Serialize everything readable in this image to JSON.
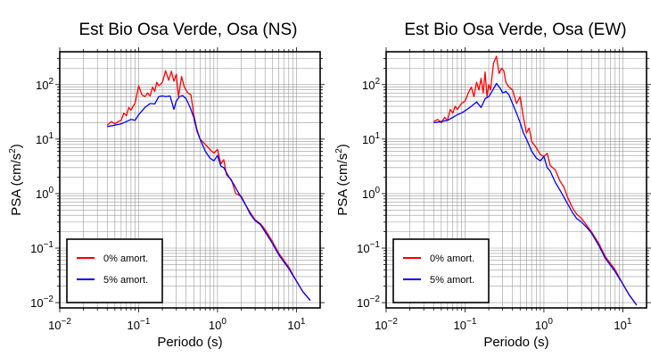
{
  "chart_data": [
    {
      "type": "line",
      "title": "Est Bio Osa Verde, Osa (NS)",
      "xlabel": "Periodo (s)",
      "ylabel_main": "PSA (cm/s",
      "ylabel_sup": "2",
      "ylabel_close": ")",
      "x_scale": "log",
      "y_scale": "log",
      "xlim": [
        0.01,
        20
      ],
      "ylim": [
        0.008,
        400
      ],
      "grid": true,
      "legend_position": "bottom-left",
      "x_ticks": [
        {
          "base": "10",
          "exp": "−2",
          "value": 0.01
        },
        {
          "base": "10",
          "exp": "−1",
          "value": 0.1
        },
        {
          "base": "10",
          "exp": "0",
          "value": 1
        },
        {
          "base": "10",
          "exp": "1",
          "value": 10
        }
      ],
      "y_ticks": [
        {
          "base": "10",
          "exp": "−2",
          "value": 0.01
        },
        {
          "base": "10",
          "exp": "−1",
          "value": 0.1
        },
        {
          "base": "10",
          "exp": "0",
          "value": 1
        },
        {
          "base": "10",
          "exp": "1",
          "value": 10
        },
        {
          "base": "10",
          "exp": "2",
          "value": 100
        }
      ],
      "series": [
        {
          "name": "0% amort.",
          "color": "#ff0000",
          "x": [
            0.04,
            0.045,
            0.05,
            0.055,
            0.06,
            0.065,
            0.07,
            0.075,
            0.08,
            0.085,
            0.09,
            0.1,
            0.11,
            0.12,
            0.13,
            0.14,
            0.15,
            0.16,
            0.17,
            0.18,
            0.2,
            0.22,
            0.24,
            0.26,
            0.28,
            0.3,
            0.32,
            0.35,
            0.38,
            0.42,
            0.46,
            0.5,
            0.55,
            0.6,
            0.7,
            0.8,
            0.9,
            1.0,
            1.1,
            1.2,
            1.3,
            1.5,
            1.7,
            2.0,
            2.3,
            2.6,
            3.0,
            3.5,
            4.0,
            5.0,
            6.0,
            8.0,
            10.0,
            12.0,
            15.0
          ],
          "y": [
            18,
            21,
            19,
            21,
            22,
            30,
            27,
            38,
            34,
            40,
            45,
            95,
            65,
            60,
            70,
            62,
            90,
            75,
            110,
            95,
            110,
            180,
            120,
            175,
            115,
            155,
            60,
            140,
            90,
            70,
            65,
            28,
            15,
            10,
            8,
            6.5,
            5.5,
            6.5,
            3.5,
            4.2,
            2.2,
            1.8,
            1.0,
            0.9,
            0.6,
            0.45,
            0.33,
            0.28,
            0.22,
            0.13,
            0.08,
            0.045,
            0.025,
            0.016,
            0.011
          ]
        },
        {
          "name": "5% amort.",
          "color": "#0000ff",
          "x": [
            0.04,
            0.05,
            0.06,
            0.07,
            0.08,
            0.09,
            0.1,
            0.12,
            0.14,
            0.16,
            0.18,
            0.2,
            0.22,
            0.25,
            0.28,
            0.3,
            0.33,
            0.36,
            0.4,
            0.45,
            0.5,
            0.55,
            0.6,
            0.7,
            0.8,
            0.9,
            1.0,
            1.1,
            1.2,
            1.4,
            1.6,
            1.8,
            2.0,
            2.3,
            2.6,
            3.0,
            3.5,
            4.0,
            5.0,
            6.0,
            8.0,
            10.0,
            12.0,
            15.0
          ],
          "y": [
            17,
            18,
            19,
            21,
            23,
            22,
            28,
            38,
            45,
            44,
            60,
            62,
            60,
            62,
            35,
            50,
            60,
            63,
            55,
            38,
            25,
            14,
            10,
            6.0,
            4.5,
            4.0,
            5.0,
            3.2,
            3.0,
            2.0,
            1.5,
            1.1,
            0.85,
            0.6,
            0.42,
            0.32,
            0.27,
            0.2,
            0.12,
            0.075,
            0.042,
            0.025,
            0.016,
            0.011
          ]
        }
      ]
    },
    {
      "type": "line",
      "title": "Est Bio Osa Verde, Osa (EW)",
      "xlabel": "Periodo (s)",
      "ylabel_main": "PSA (cm/s",
      "ylabel_sup": "2",
      "ylabel_close": ")",
      "x_scale": "log",
      "y_scale": "log",
      "xlim": [
        0.01,
        20
      ],
      "ylim": [
        0.008,
        400
      ],
      "grid": true,
      "legend_position": "bottom-left",
      "x_ticks": [
        {
          "base": "10",
          "exp": "−2",
          "value": 0.01
        },
        {
          "base": "10",
          "exp": "−1",
          "value": 0.1
        },
        {
          "base": "10",
          "exp": "0",
          "value": 1
        },
        {
          "base": "10",
          "exp": "1",
          "value": 10
        }
      ],
      "y_ticks": [
        {
          "base": "10",
          "exp": "−2",
          "value": 0.01
        },
        {
          "base": "10",
          "exp": "−1",
          "value": 0.1
        },
        {
          "base": "10",
          "exp": "0",
          "value": 1
        },
        {
          "base": "10",
          "exp": "1",
          "value": 10
        },
        {
          "base": "10",
          "exp": "2",
          "value": 100
        }
      ],
      "series": [
        {
          "name": "0% amort.",
          "color": "#ff0000",
          "x": [
            0.04,
            0.045,
            0.05,
            0.055,
            0.06,
            0.065,
            0.07,
            0.075,
            0.08,
            0.09,
            0.1,
            0.11,
            0.12,
            0.13,
            0.14,
            0.15,
            0.16,
            0.17,
            0.18,
            0.19,
            0.2,
            0.21,
            0.22,
            0.23,
            0.25,
            0.27,
            0.29,
            0.31,
            0.33,
            0.36,
            0.4,
            0.45,
            0.5,
            0.55,
            0.6,
            0.65,
            0.7,
            0.8,
            0.9,
            1.0,
            1.1,
            1.2,
            1.4,
            1.6,
            1.8,
            2.0,
            2.3,
            2.6,
            3.0,
            3.5,
            4.0,
            5.0,
            6.0,
            8.0,
            10.0,
            12.0,
            15.0
          ],
          "y": [
            21,
            23,
            20,
            25,
            22,
            35,
            30,
            40,
            35,
            45,
            50,
            70,
            90,
            60,
            110,
            80,
            130,
            70,
            170,
            60,
            100,
            80,
            140,
            250,
            330,
            160,
            200,
            180,
            110,
            90,
            80,
            45,
            60,
            25,
            13,
            16,
            9,
            7.0,
            5.2,
            4.8,
            5.5,
            3.3,
            2.7,
            1.7,
            1.3,
            0.85,
            0.55,
            0.42,
            0.35,
            0.26,
            0.2,
            0.12,
            0.07,
            0.04,
            0.022,
            0.014,
            0.009
          ]
        },
        {
          "name": "5% amort.",
          "color": "#0000ff",
          "x": [
            0.04,
            0.05,
            0.06,
            0.07,
            0.08,
            0.09,
            0.1,
            0.12,
            0.14,
            0.16,
            0.18,
            0.2,
            0.22,
            0.25,
            0.28,
            0.3,
            0.33,
            0.36,
            0.4,
            0.45,
            0.5,
            0.55,
            0.6,
            0.7,
            0.8,
            0.9,
            1.0,
            1.1,
            1.2,
            1.4,
            1.6,
            1.8,
            2.0,
            2.3,
            2.6,
            3.0,
            3.5,
            4.0,
            5.0,
            6.0,
            8.0,
            10.0,
            12.0,
            15.0
          ],
          "y": [
            20,
            21,
            22,
            25,
            28,
            30,
            33,
            40,
            48,
            38,
            55,
            60,
            75,
            105,
            85,
            70,
            75,
            65,
            45,
            30,
            20,
            13,
            10,
            6.0,
            4.5,
            4.0,
            4.8,
            3.0,
            2.6,
            1.6,
            1.15,
            0.85,
            0.65,
            0.45,
            0.35,
            0.3,
            0.24,
            0.19,
            0.11,
            0.065,
            0.037,
            0.022,
            0.014,
            0.009
          ]
        }
      ]
    }
  ]
}
